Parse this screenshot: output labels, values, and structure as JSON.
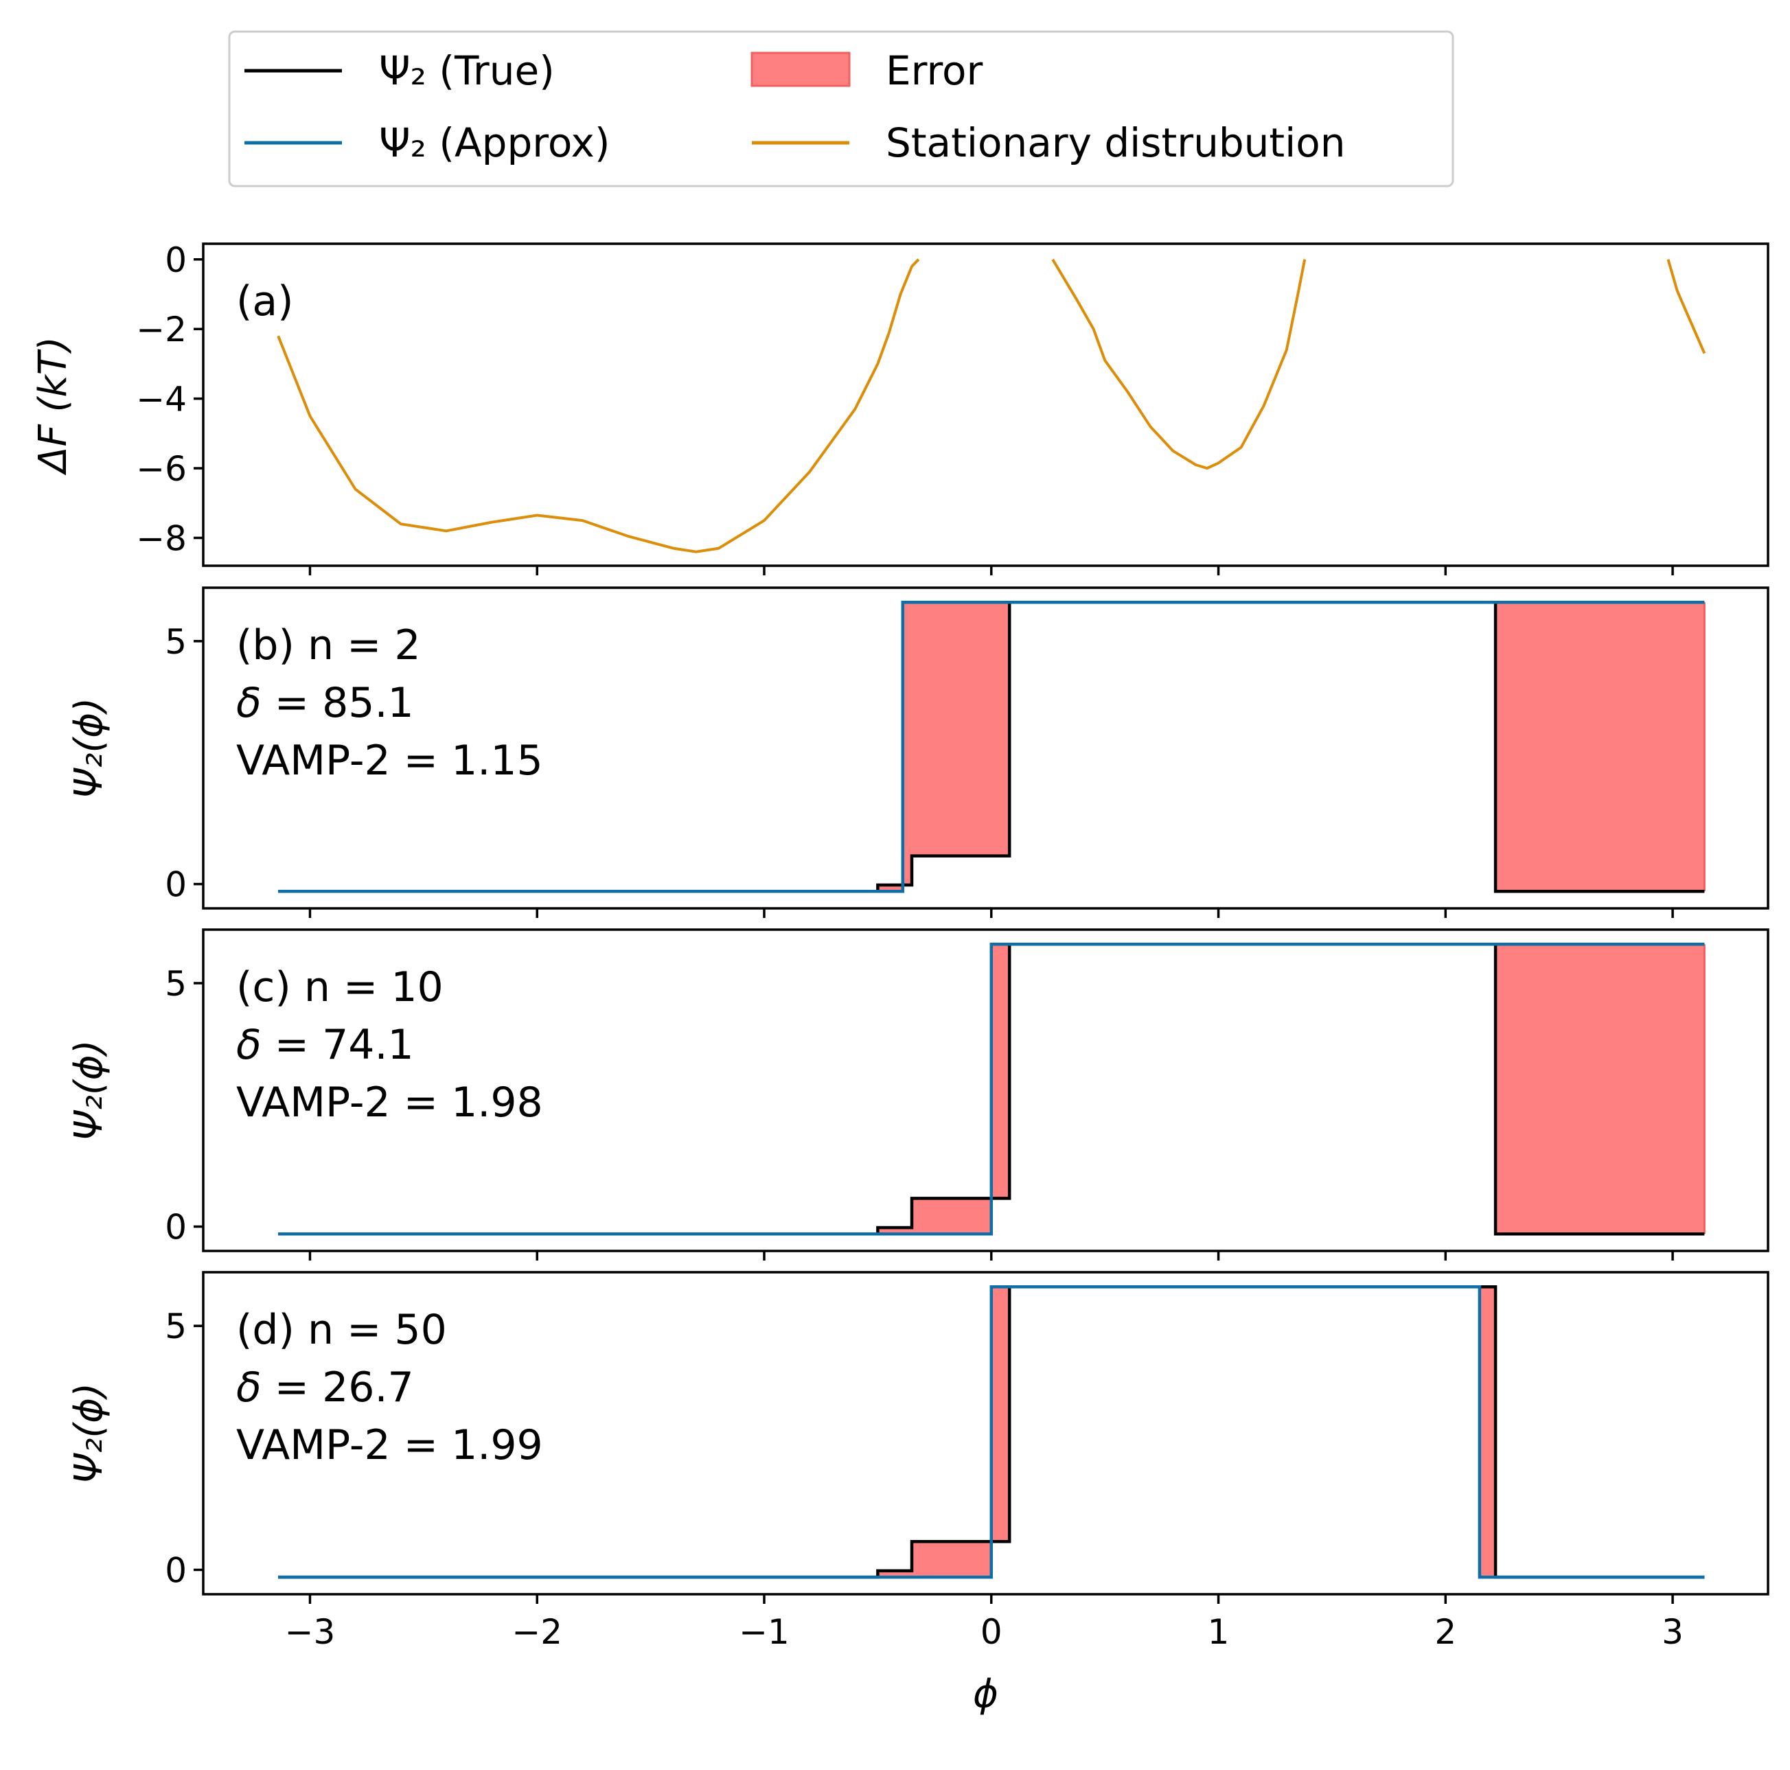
{
  "colors": {
    "true": "#000000",
    "approx": "#0e6fa8",
    "error": "#ff8080",
    "error_edge": "#f06060",
    "stationary": "#dc8e0a"
  },
  "legend": {
    "placement": "top-left, above panels",
    "items": [
      {
        "label": "Ψ₂ (True)",
        "kind": "line",
        "color": "#000000"
      },
      {
        "label": "Ψ₂ (Approx)",
        "kind": "line",
        "color": "#0e6fa8"
      },
      {
        "label": "Error",
        "kind": "patch",
        "color": "#ff8080"
      },
      {
        "label": "Stationary distrubution",
        "kind": "line",
        "color": "#dc8e0a"
      }
    ]
  },
  "chart_data": [
    {
      "type": "line",
      "panel_label": "(a)",
      "ylabel": "ΔF (kT)",
      "xlim": [
        -3.47,
        3.42
      ],
      "ylim": [
        -8.8,
        0.45
      ],
      "yticks": [
        0,
        -2,
        -4,
        -6,
        -8
      ],
      "yticklabels": [
        "0",
        "−2",
        "−4",
        "−6",
        "−8"
      ],
      "series": [
        {
          "role": "stationary",
          "segments": [
            {
              "x": [
                -3.14,
                -3.0,
                -2.8,
                -2.6,
                -2.4,
                -2.2,
                -2.0,
                -1.8,
                -1.6,
                -1.4,
                -1.3,
                -1.2,
                -1.0,
                -0.8,
                -0.6,
                -0.5,
                -0.45,
                -0.4,
                -0.35,
                -0.32
              ],
              "y": [
                -2.2,
                -4.5,
                -6.6,
                -7.6,
                -7.8,
                -7.55,
                -7.35,
                -7.5,
                -7.95,
                -8.3,
                -8.4,
                -8.3,
                -7.5,
                -6.1,
                -4.3,
                -3.0,
                -2.1,
                -1.0,
                -0.2,
                0.0
              ]
            },
            {
              "x": [
                0.27,
                0.38,
                0.45,
                0.5,
                0.6,
                0.7,
                0.8,
                0.9,
                0.95,
                1.0,
                1.1,
                1.2,
                1.3,
                1.35,
                1.38
              ],
              "y": [
                0.0,
                -1.2,
                -2.0,
                -2.9,
                -3.8,
                -4.8,
                -5.5,
                -5.9,
                -6.0,
                -5.85,
                -5.4,
                -4.2,
                -2.6,
                -1.0,
                0.0
              ]
            },
            {
              "x": [
                2.98,
                3.02,
                3.06,
                3.1,
                3.14
              ],
              "y": [
                0.0,
                -0.9,
                -1.5,
                -2.1,
                -2.7
              ]
            }
          ]
        }
      ]
    },
    {
      "type": "line",
      "panel_label": "(b) n = 2",
      "stats": {
        "delta": "85.1",
        "vamp2": "1.15"
      },
      "ylabel": "Ψ₂(ϕ)",
      "xlim": [
        -3.47,
        3.42
      ],
      "ylim": [
        -0.5,
        6.1
      ],
      "yticks": [
        0,
        5
      ],
      "yticklabels": [
        "0",
        "5"
      ],
      "series": [
        {
          "role": "true",
          "x": [
            -3.14,
            -0.5,
            -0.5,
            -0.35,
            -0.35,
            0.08,
            0.08,
            2.22,
            2.22,
            3.14
          ],
          "y": [
            -0.15,
            -0.15,
            -0.02,
            -0.02,
            0.58,
            0.58,
            5.8,
            5.8,
            -0.15,
            -0.15
          ]
        },
        {
          "role": "approx",
          "x": [
            -3.14,
            -0.39,
            -0.39,
            3.14
          ],
          "y": [
            -0.15,
            -0.15,
            5.8,
            5.8
          ]
        }
      ]
    },
    {
      "type": "line",
      "panel_label": "(c) n = 10",
      "stats": {
        "delta": "74.1",
        "vamp2": "1.98"
      },
      "ylabel": "Ψ₂(ϕ)",
      "xlim": [
        -3.47,
        3.42
      ],
      "ylim": [
        -0.5,
        6.1
      ],
      "yticks": [
        0,
        5
      ],
      "yticklabels": [
        "0",
        "5"
      ],
      "series": [
        {
          "role": "true",
          "x": [
            -3.14,
            -0.5,
            -0.5,
            -0.35,
            -0.35,
            0.08,
            0.08,
            2.22,
            2.22,
            3.14
          ],
          "y": [
            -0.15,
            -0.15,
            -0.02,
            -0.02,
            0.58,
            0.58,
            5.8,
            5.8,
            -0.15,
            -0.15
          ]
        },
        {
          "role": "approx",
          "x": [
            -3.14,
            0.0,
            0.0,
            3.14
          ],
          "y": [
            -0.15,
            -0.15,
            5.8,
            5.8
          ]
        }
      ]
    },
    {
      "type": "line",
      "panel_label": "(d) n = 50",
      "stats": {
        "delta": "26.7",
        "vamp2": "1.99"
      },
      "ylabel": "Ψ₂(ϕ)",
      "xlabel": "ϕ",
      "xlim": [
        -3.47,
        3.42
      ],
      "ylim": [
        -0.5,
        6.1
      ],
      "yticks": [
        0,
        5
      ],
      "yticklabels": [
        "0",
        "5"
      ],
      "xticks": [
        -3,
        -2,
        -1,
        0,
        1,
        2,
        3
      ],
      "xticklabels": [
        "−3",
        "−2",
        "−1",
        "0",
        "1",
        "2",
        "3"
      ],
      "series": [
        {
          "role": "true",
          "x": [
            -3.14,
            -0.5,
            -0.5,
            -0.35,
            -0.35,
            0.08,
            0.08,
            2.22,
            2.22,
            3.14
          ],
          "y": [
            -0.15,
            -0.15,
            -0.02,
            -0.02,
            0.58,
            0.58,
            5.8,
            5.8,
            -0.15,
            -0.15
          ]
        },
        {
          "role": "approx",
          "x": [
            -3.14,
            0.0,
            0.0,
            2.15,
            2.15,
            3.14
          ],
          "y": [
            -0.15,
            -0.15,
            5.8,
            5.8,
            -0.15,
            -0.15
          ]
        }
      ]
    }
  ]
}
